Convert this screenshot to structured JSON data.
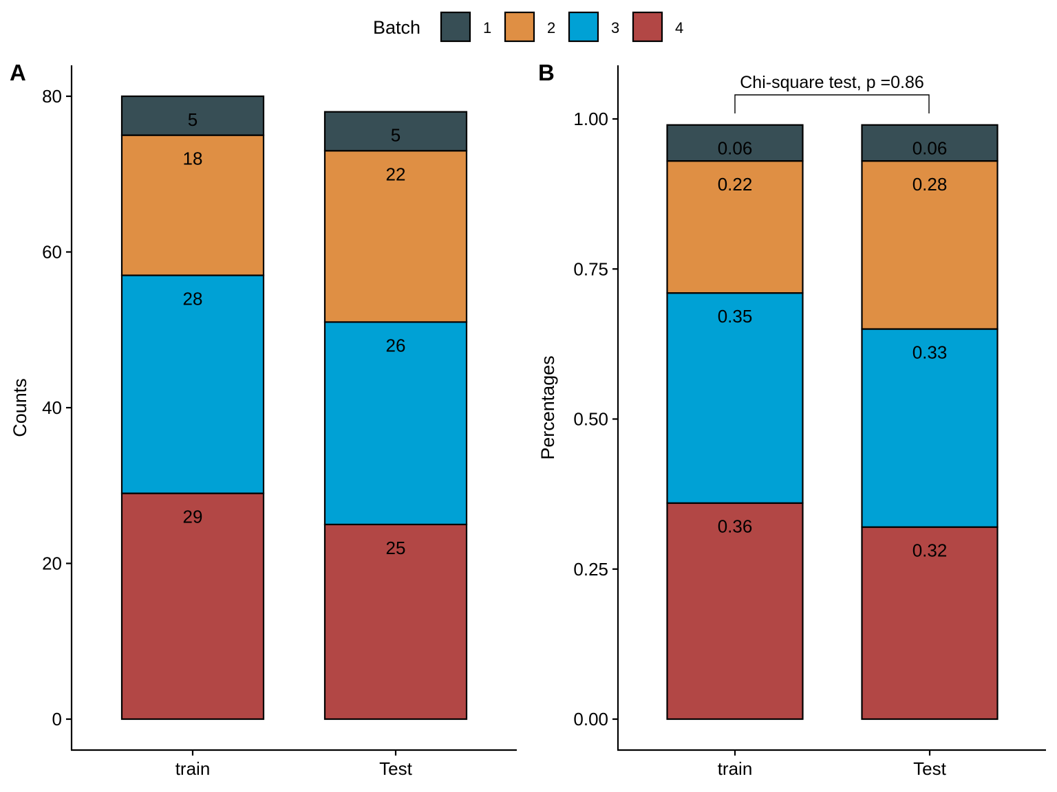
{
  "legend": {
    "title": "Batch",
    "entries": [
      {
        "label": "1",
        "color": "#374e55"
      },
      {
        "label": "2",
        "color": "#df8f44"
      },
      {
        "label": "3",
        "color": "#00a1d5"
      },
      {
        "label": "4",
        "color": "#b24745"
      }
    ]
  },
  "chart_data": [
    {
      "type": "bar",
      "stacked": true,
      "panel": "A",
      "title": "",
      "xlabel": "",
      "ylabel": "Counts",
      "categories": [
        "train",
        "Test"
      ],
      "ylim": [
        0,
        80
      ],
      "yticks": [
        0,
        20,
        40,
        60,
        80
      ],
      "ytick_labels": [
        "0",
        "20",
        "40",
        "60",
        "80"
      ],
      "grid": false,
      "legend_position": "top",
      "series": [
        {
          "name": "4",
          "color": "#b24745",
          "values": [
            29,
            25
          ],
          "labels": [
            "29",
            "25"
          ]
        },
        {
          "name": "3",
          "color": "#00a1d5",
          "values": [
            28,
            26
          ],
          "labels": [
            "28",
            "26"
          ]
        },
        {
          "name": "2",
          "color": "#df8f44",
          "values": [
            18,
            22
          ],
          "labels": [
            "18",
            "22"
          ]
        },
        {
          "name": "1",
          "color": "#374e55",
          "values": [
            5,
            5
          ],
          "labels": [
            "5",
            "5"
          ]
        }
      ]
    },
    {
      "type": "bar",
      "stacked": true,
      "panel": "B",
      "title": "",
      "xlabel": "",
      "ylabel": "Percentages",
      "categories": [
        "train",
        "Test"
      ],
      "ylim": [
        0,
        1
      ],
      "yticks": [
        0,
        0.25,
        0.5,
        0.75,
        1.0
      ],
      "ytick_labels": [
        "0.00",
        "0.25",
        "0.50",
        "0.75",
        "1.00"
      ],
      "grid": false,
      "annotation": "Chi-square test,  p =0.86",
      "series": [
        {
          "name": "4",
          "color": "#b24745",
          "values": [
            0.36,
            0.32
          ],
          "labels": [
            "0.36",
            "0.32"
          ]
        },
        {
          "name": "3",
          "color": "#00a1d5",
          "values": [
            0.35,
            0.33
          ],
          "labels": [
            "0.35",
            "0.33"
          ]
        },
        {
          "name": "2",
          "color": "#df8f44",
          "values": [
            0.22,
            0.28
          ],
          "labels": [
            "0.22",
            "0.28"
          ]
        },
        {
          "name": "1",
          "color": "#374e55",
          "values": [
            0.06,
            0.06
          ],
          "labels": [
            "0.06",
            "0.06"
          ]
        }
      ]
    }
  ]
}
